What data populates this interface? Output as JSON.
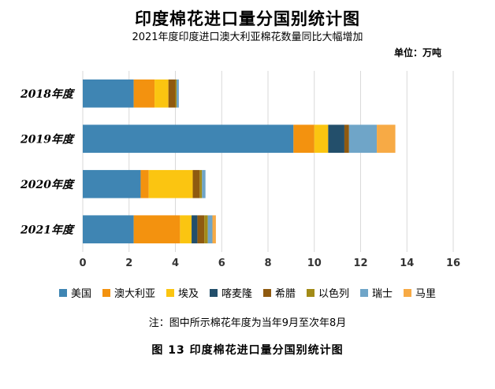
{
  "chart_data": {
    "type": "bar",
    "orientation": "horizontal",
    "stacked": true,
    "title": "印度棉花进口量分国别统计图",
    "subtitle": "2021年度印度进口澳大利亚棉花数量同比大幅增加",
    "unit_label": "单位：万吨",
    "categories": [
      "2018年度",
      "2019年度",
      "2020年度",
      "2021年度"
    ],
    "xlim": [
      0,
      16
    ],
    "xticks": [
      0,
      2,
      4,
      6,
      8,
      10,
      12,
      14,
      16
    ],
    "grid": true,
    "legend_position": "bottom",
    "series": [
      {
        "name": "美国",
        "color": "#3f85b3",
        "values": [
          2.2,
          9.1,
          2.5,
          2.2
        ]
      },
      {
        "name": "澳大利亚",
        "color": "#f3920f",
        "values": [
          0.9,
          0.9,
          0.35,
          2.0
        ]
      },
      {
        "name": "埃及",
        "color": "#fbc511",
        "values": [
          0.6,
          0.6,
          1.9,
          0.5
        ]
      },
      {
        "name": "喀麦隆",
        "color": "#234f6b",
        "values": [
          0.0,
          0.7,
          0.0,
          0.25
        ]
      },
      {
        "name": "希腊",
        "color": "#8f5a10",
        "values": [
          0.3,
          0.2,
          0.3,
          0.3
        ]
      },
      {
        "name": "以色列",
        "color": "#a28b17",
        "values": [
          0.05,
          0.0,
          0.1,
          0.15
        ]
      },
      {
        "name": "瑞士",
        "color": "#6fa5c8",
        "values": [
          0.1,
          1.2,
          0.15,
          0.2
        ]
      },
      {
        "name": "马里",
        "color": "#f7aa45",
        "values": [
          0.0,
          0.8,
          0.0,
          0.15
        ]
      }
    ]
  },
  "note": "注：图中所示棉花年度为当年9月至次年8月",
  "caption": "图 13    印度棉花进口量分国别统计图"
}
